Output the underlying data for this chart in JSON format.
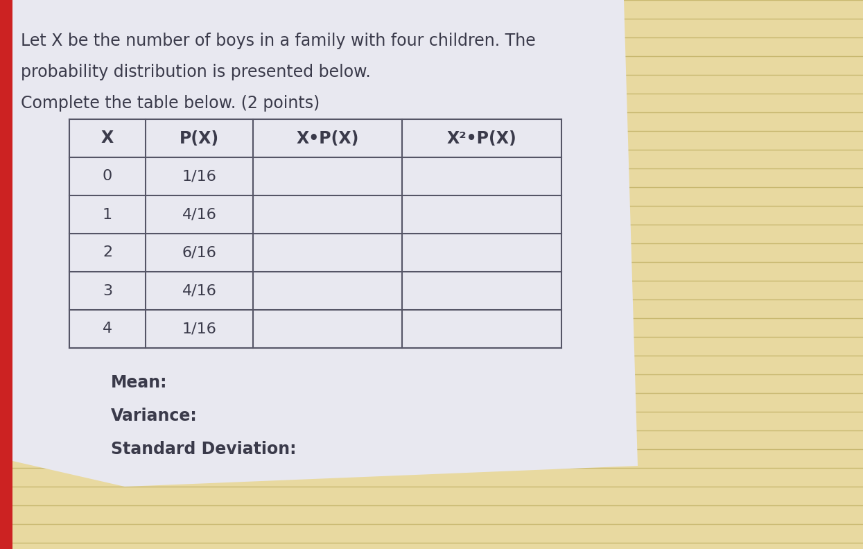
{
  "title_line1": "Let X be the number of boys in a family with four children. The",
  "title_line2": "probability distribution is presented below.",
  "title_line3": "Complete the table below. (2 points)",
  "col_headers": [
    "X",
    "P(X)",
    "X•P(X)",
    "X²•P(X)"
  ],
  "rows": [
    [
      "0",
      "1/16",
      "",
      ""
    ],
    [
      "1",
      "4/16",
      "",
      ""
    ],
    [
      "2",
      "6/16",
      "",
      ""
    ],
    [
      "3",
      "4/16",
      "",
      ""
    ],
    [
      "4",
      "1/16",
      "",
      ""
    ]
  ],
  "footer_labels": [
    "Mean:",
    "Variance:",
    "Standard Deviation:"
  ],
  "notebook_bg": "#e8d9a0",
  "notebook_line_color": "#c8b870",
  "paper_color": "#e8e8f0",
  "table_line_color": "#555566",
  "text_color": "#3a3a4a",
  "title_fontsize": 17,
  "table_fontsize": 16,
  "footer_fontsize": 17,
  "red_strip_color": "#cc2222"
}
